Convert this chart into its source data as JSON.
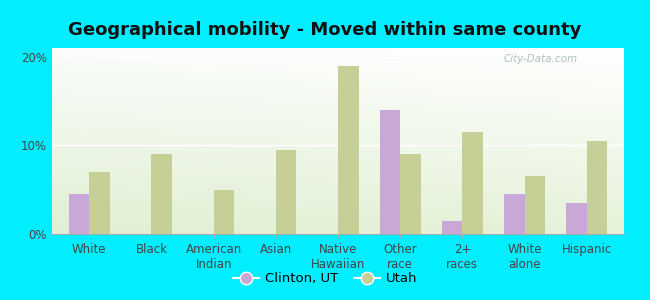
{
  "title": "Geographical mobility - Moved within same county",
  "categories": [
    "White",
    "Black",
    "American\nIndian",
    "Asian",
    "Native\nHawaiian",
    "Other\nrace",
    "2+\nraces",
    "White\nalone",
    "Hispanic"
  ],
  "clinton_values": [
    4.5,
    0,
    0,
    0,
    0,
    14.0,
    1.5,
    4.5,
    3.5
  ],
  "utah_values": [
    7.0,
    9.0,
    5.0,
    9.5,
    19.0,
    9.0,
    11.5,
    6.5,
    10.5
  ],
  "clinton_color": "#c9a8d8",
  "utah_color": "#c5cf96",
  "background_outer": "#00eeff",
  "background_inner": "#e8f5e0",
  "ylim": [
    0,
    21
  ],
  "yticks": [
    0,
    10,
    20
  ],
  "ytick_labels": [
    "0%",
    "10%",
    "20%"
  ],
  "watermark": "City-Data.com",
  "legend_clinton": "Clinton, UT",
  "legend_utah": "Utah",
  "title_fontsize": 13,
  "tick_fontsize": 8.5,
  "legend_fontsize": 9.5
}
